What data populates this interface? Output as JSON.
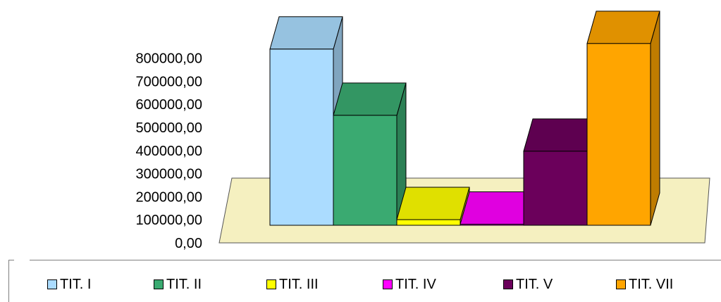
{
  "chart_data": {
    "type": "bar",
    "categories": [
      "TIT. I",
      "TIT. II",
      "TIT. III",
      "TIT. IV",
      "TIT. V",
      "TIT. VII"
    ],
    "values": [
      785000,
      490000,
      25000,
      2000,
      330000,
      810000
    ],
    "colors": {
      "TIT. I": "#abdcff",
      "TIT. II": "#3aaa71",
      "TIT. III": "#ffff00",
      "TIT. IV": "#ff00ff",
      "TIT. V": "#6b005b",
      "TIT. VII": "#ffa500"
    },
    "ylim": [
      0,
      800000
    ],
    "yticks": [
      "0,00",
      "100000,00",
      "200000,00",
      "300000,00",
      "400000,00",
      "500000,00",
      "600000,00",
      "700000,00",
      "800000,00"
    ],
    "floor_color": "#f5f0c0",
    "legend_position": "bottom",
    "grid": false,
    "three_d": true
  }
}
